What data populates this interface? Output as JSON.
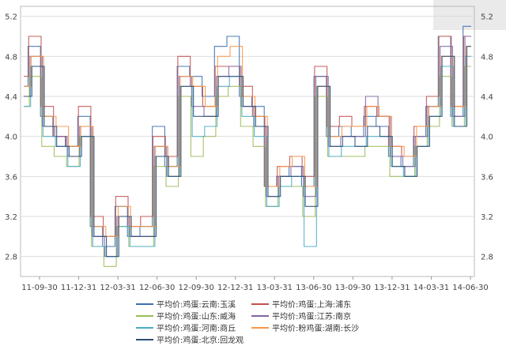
{
  "chart_data": {
    "type": "line",
    "title": "",
    "xlabel": "",
    "ylabel": "",
    "x_tick_labels": [
      "11-09-30",
      "11-12-31",
      "12-03-31",
      "12-06-30",
      "12-09-30",
      "12-12-31",
      "13-03-31",
      "13-06-30",
      "13-09-30",
      "13-12-31",
      "14-03-31",
      "14-06-30"
    ],
    "y_ticks": [
      2.8,
      3.2,
      3.6,
      4.0,
      4.4,
      4.8,
      5.2
    ],
    "y_tick_labels": [
      "2.8",
      "3.2",
      "3.6",
      "4.0",
      "4.4",
      "4.8",
      "5.2"
    ],
    "ylim": [
      2.6,
      5.3
    ],
    "grid": true,
    "y_axis_both_sides": true,
    "legend_position": "bottom",
    "x": [
      "11-07",
      "11-08",
      "11-09",
      "11-10",
      "11-11",
      "11-12",
      "12-01",
      "12-02",
      "12-03",
      "12-04",
      "12-05",
      "12-06",
      "12-07",
      "12-08",
      "12-09",
      "12-10",
      "12-11",
      "12-12",
      "13-01",
      "13-02",
      "13-03",
      "13-04",
      "13-05",
      "13-06",
      "13-07",
      "13-08",
      "13-09",
      "13-10",
      "13-11",
      "13-12",
      "14-01",
      "14-02",
      "14-03",
      "14-04",
      "14-05",
      "14-06",
      "14-07"
    ],
    "series": [
      {
        "name": "平均价:鸡蛋:云南:玉溪",
        "color": "#3b6fb0",
        "values": [
          4.5,
          4.9,
          4.2,
          4.0,
          3.9,
          4.2,
          3.1,
          2.9,
          3.3,
          3.0,
          3.1,
          4.1,
          3.7,
          4.7,
          4.6,
          4.4,
          4.9,
          5.0,
          4.4,
          4.3,
          3.5,
          3.6,
          3.7,
          3.5,
          4.6,
          4.0,
          4.1,
          4.0,
          4.2,
          4.1,
          3.8,
          3.7,
          4.0,
          4.3,
          5.0,
          4.2,
          5.1
        ]
      },
      {
        "name": "平均价:鸡蛋:上海:浦东",
        "color": "#c0504d",
        "values": [
          4.6,
          5.0,
          4.3,
          4.0,
          3.9,
          4.3,
          3.2,
          3.0,
          3.4,
          3.1,
          3.2,
          4.0,
          3.8,
          4.8,
          4.5,
          4.3,
          4.7,
          4.7,
          4.5,
          4.2,
          3.5,
          3.7,
          3.8,
          3.6,
          4.7,
          4.1,
          4.2,
          4.1,
          4.3,
          4.2,
          3.9,
          3.8,
          4.1,
          4.4,
          5.0,
          4.3,
          5.0
        ]
      },
      {
        "name": "平均价:鸡蛋:山东:威海",
        "color": "#9bbb59",
        "values": [
          4.3,
          4.6,
          3.9,
          3.8,
          3.7,
          4.0,
          2.9,
          2.7,
          3.1,
          2.9,
          2.9,
          3.7,
          3.5,
          4.4,
          3.8,
          4.0,
          4.4,
          4.5,
          4.1,
          3.9,
          3.3,
          3.5,
          3.5,
          3.2,
          4.4,
          3.8,
          3.8,
          3.8,
          3.9,
          3.9,
          3.6,
          3.6,
          3.9,
          4.1,
          4.6,
          4.1,
          4.7
        ]
      },
      {
        "name": "平均价:鸡蛋:江苏:南京",
        "color": "#8064a2",
        "values": [
          4.4,
          4.8,
          4.1,
          4.0,
          3.8,
          4.1,
          3.0,
          2.8,
          3.2,
          3.0,
          3.0,
          3.9,
          3.6,
          4.6,
          4.3,
          4.2,
          4.6,
          4.7,
          4.3,
          4.1,
          3.4,
          3.6,
          3.7,
          3.4,
          4.6,
          3.9,
          4.0,
          4.0,
          4.4,
          4.2,
          3.8,
          3.7,
          4.0,
          4.3,
          4.9,
          4.2,
          5.0
        ]
      },
      {
        "name": "平均价:鸡蛋:河南:商丘",
        "color": "#4bacc6",
        "values": [
          4.3,
          4.7,
          4.0,
          3.9,
          3.7,
          4.0,
          2.9,
          2.8,
          3.1,
          2.9,
          2.9,
          3.8,
          3.6,
          4.5,
          4.0,
          4.1,
          4.5,
          4.6,
          4.2,
          4.0,
          3.3,
          3.5,
          3.6,
          2.9,
          4.5,
          3.8,
          3.9,
          3.9,
          4.0,
          4.0,
          3.7,
          3.6,
          3.9,
          4.2,
          4.7,
          4.1,
          4.8
        ]
      },
      {
        "name": "平均价:粉鸡蛋:湖南:长沙",
        "color": "#f79646",
        "values": [
          4.5,
          4.8,
          4.2,
          4.1,
          3.9,
          4.1,
          3.1,
          3.0,
          3.3,
          3.1,
          3.1,
          3.9,
          3.7,
          4.6,
          4.5,
          4.3,
          4.8,
          4.9,
          4.4,
          4.2,
          3.5,
          3.7,
          3.8,
          3.5,
          4.5,
          4.0,
          4.1,
          4.1,
          4.3,
          4.2,
          3.9,
          3.8,
          4.1,
          4.3,
          4.8,
          4.3,
          4.9
        ]
      },
      {
        "name": "平均价:鸡蛋:北京:回龙观",
        "color": "#2c4d75",
        "values": [
          4.4,
          4.7,
          4.1,
          3.9,
          3.8,
          4.0,
          3.0,
          2.8,
          3.2,
          3.0,
          3.0,
          3.8,
          3.6,
          4.5,
          4.2,
          4.2,
          4.6,
          4.6,
          4.3,
          4.1,
          3.4,
          3.6,
          3.6,
          3.3,
          4.5,
          3.9,
          4.0,
          3.9,
          4.1,
          4.0,
          3.7,
          3.6,
          3.9,
          4.2,
          4.8,
          4.1,
          4.9
        ]
      }
    ]
  }
}
